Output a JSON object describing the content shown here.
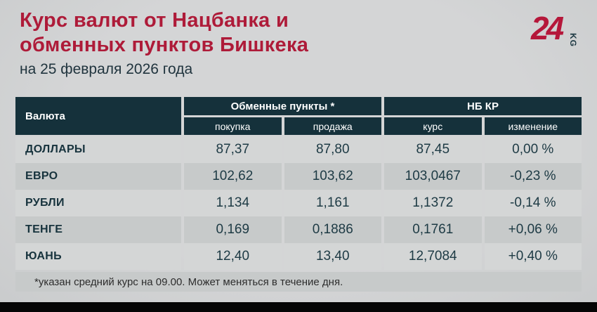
{
  "header": {
    "title_line1": "Курс валют от Нацбанка и",
    "title_line2": "обменных пунктов Бишкека",
    "date": "на 25 февраля 2026 года"
  },
  "logo": {
    "number": "24",
    "suffix": "KG"
  },
  "chart_data": {
    "type": "table",
    "title": "Курс валют от Нацбанка и обменных пунктов Бишкека",
    "subtitle": "на 25 февраля 2026 года",
    "columns": [
      "Валюта",
      "покупка",
      "продажа",
      "курс",
      "изменение"
    ],
    "column_groups": [
      {
        "label": "Обменные пункты *",
        "covers": [
          "покупка",
          "продажа"
        ]
      },
      {
        "label": "НБ КР",
        "covers": [
          "курс",
          "изменение"
        ]
      }
    ],
    "rows": [
      {
        "currency": "ДОЛЛАРЫ",
        "buy": "87,37",
        "sell": "87,80",
        "rate": "87,45",
        "change": "0,00 %"
      },
      {
        "currency": "ЕВРО",
        "buy": "102,62",
        "sell": "103,62",
        "rate": "103,0467",
        "change": "-0,23 %"
      },
      {
        "currency": "РУБЛИ",
        "buy": "1,134",
        "sell": "1,161",
        "rate": "1,1372",
        "change": "-0,14 %"
      },
      {
        "currency": "ТЕНГЕ",
        "buy": "0,169",
        "sell": "0,1886",
        "rate": "0,1761",
        "change": "+0,06 %"
      },
      {
        "currency": "ЮАНЬ",
        "buy": "12,40",
        "sell": "13,40",
        "rate": "12,7084",
        "change": "+0,40 %"
      }
    ],
    "footnote": "*указан средний курс на 09.00. Может меняться в течение дня."
  },
  "colors": {
    "accent_red": "#ae1b39",
    "header_teal": "#15313b",
    "row_dark": "#c7caca",
    "row_light": "#d4d6d6",
    "background": "#d1d3d4",
    "text_teal": "#1d3a44"
  }
}
